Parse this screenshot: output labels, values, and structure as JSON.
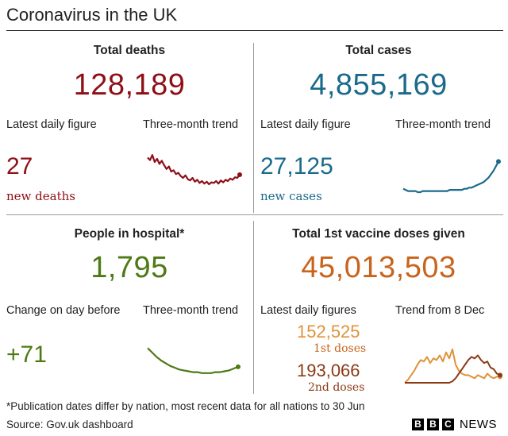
{
  "title": "Coronavirus in the UK",
  "colors": {
    "deaths": "#8f0f17",
    "cases": "#1b6a8b",
    "hospital": "#4d7a14",
    "vaccine1": "#e0923a",
    "vaccine2": "#8c3a16",
    "rule": "#222222"
  },
  "panels": {
    "deaths": {
      "title": "Total deaths",
      "total": "128,189",
      "latest_label": "Latest daily figure",
      "trend_label": "Three-month trend",
      "latest_value": "27",
      "latest_note": "new deaths"
    },
    "cases": {
      "title": "Total cases",
      "total": "4,855,169",
      "latest_label": "Latest daily figure",
      "trend_label": "Three-month trend",
      "latest_value": "27,125",
      "latest_note": "new cases"
    },
    "hospital": {
      "title": "People in hospital*",
      "total": "1,795",
      "latest_label": "Change on day before",
      "trend_label": "Three-month trend",
      "latest_value": "+71"
    },
    "vaccine": {
      "title": "Total 1st vaccine doses given",
      "total": "45,013,503",
      "latest_label": "Latest daily figures",
      "trend_label": "Trend from 8 Dec",
      "first_value": "152,525",
      "first_note": "1st doses",
      "second_value": "193,066",
      "second_note": "2nd doses"
    }
  },
  "footnote": "*Publication dates differ by nation, most recent data for all nations to 30 Jun",
  "source": "Source: Gov.uk dashboard",
  "logo": {
    "box1": "B",
    "box2": "B",
    "box3": "C",
    "text": "NEWS"
  },
  "chart_data": [
    {
      "type": "line",
      "name": "deaths-trend",
      "x": [
        0,
        1,
        2,
        3,
        4,
        5,
        6,
        7,
        8,
        9,
        10,
        11,
        12,
        13,
        14,
        15,
        16,
        17,
        18,
        19,
        20,
        21,
        22,
        23,
        24,
        25,
        26,
        27,
        28,
        29,
        30,
        31,
        32,
        33,
        34,
        35,
        36,
        37,
        38,
        39
      ],
      "values": [
        62,
        58,
        66,
        55,
        60,
        52,
        57,
        50,
        44,
        48,
        40,
        42,
        36,
        38,
        33,
        30,
        34,
        28,
        26,
        30,
        24,
        27,
        22,
        25,
        21,
        24,
        20,
        23,
        22,
        25,
        21,
        26,
        23,
        27,
        25,
        29,
        27,
        31,
        30,
        35
      ]
    },
    {
      "type": "line",
      "name": "cases-trend",
      "x": [
        0,
        1,
        2,
        3,
        4,
        5,
        6,
        7,
        8,
        9,
        10,
        11,
        12,
        13,
        14,
        15,
        16,
        17,
        18,
        19,
        20,
        21,
        22,
        23,
        24,
        25,
        26,
        27,
        28,
        29,
        30,
        31,
        32,
        33,
        34,
        35,
        36,
        37,
        38,
        39
      ],
      "values": [
        3,
        2,
        1,
        1,
        1,
        1,
        0,
        0,
        1,
        1,
        1,
        1,
        1,
        1,
        1,
        1,
        1,
        1,
        1,
        2,
        2,
        2,
        2,
        2,
        2,
        3,
        3,
        4,
        4,
        5,
        6,
        7,
        8,
        9,
        11,
        13,
        16,
        19,
        23,
        27
      ]
    },
    {
      "type": "line",
      "name": "hospital-trend",
      "x": [
        0,
        1,
        2,
        3,
        4,
        5,
        6,
        7,
        8,
        9,
        10,
        11,
        12,
        13,
        14,
        15,
        16,
        17,
        18,
        19,
        20
      ],
      "values": [
        30,
        25,
        20,
        16,
        13,
        10,
        8,
        6,
        5,
        4,
        3,
        3,
        2,
        2,
        2,
        3,
        3,
        4,
        5,
        7,
        9
      ]
    },
    {
      "type": "line",
      "name": "vaccine-trend",
      "x": [
        0,
        1,
        2,
        3,
        4,
        5,
        6,
        7,
        8,
        9,
        10,
        11,
        12,
        13,
        14,
        15,
        16,
        17,
        18,
        19,
        20,
        21,
        22,
        23,
        24,
        25,
        26,
        27,
        28,
        29,
        30
      ],
      "series": [
        {
          "name": "1st doses",
          "values": [
            0,
            2,
            5,
            8,
            12,
            15,
            14,
            17,
            13,
            16,
            15,
            18,
            14,
            20,
            16,
            22,
            12,
            8,
            6,
            5,
            5,
            4,
            3,
            5,
            4,
            3,
            6,
            4,
            3,
            4,
            4
          ]
        },
        {
          "name": "2nd doses",
          "values": [
            0,
            0,
            0,
            0,
            0,
            0,
            0,
            0,
            0,
            0,
            0,
            0,
            0,
            0,
            0,
            1,
            3,
            6,
            9,
            12,
            15,
            17,
            16,
            18,
            15,
            13,
            14,
            10,
            9,
            6,
            5
          ]
        }
      ]
    }
  ]
}
